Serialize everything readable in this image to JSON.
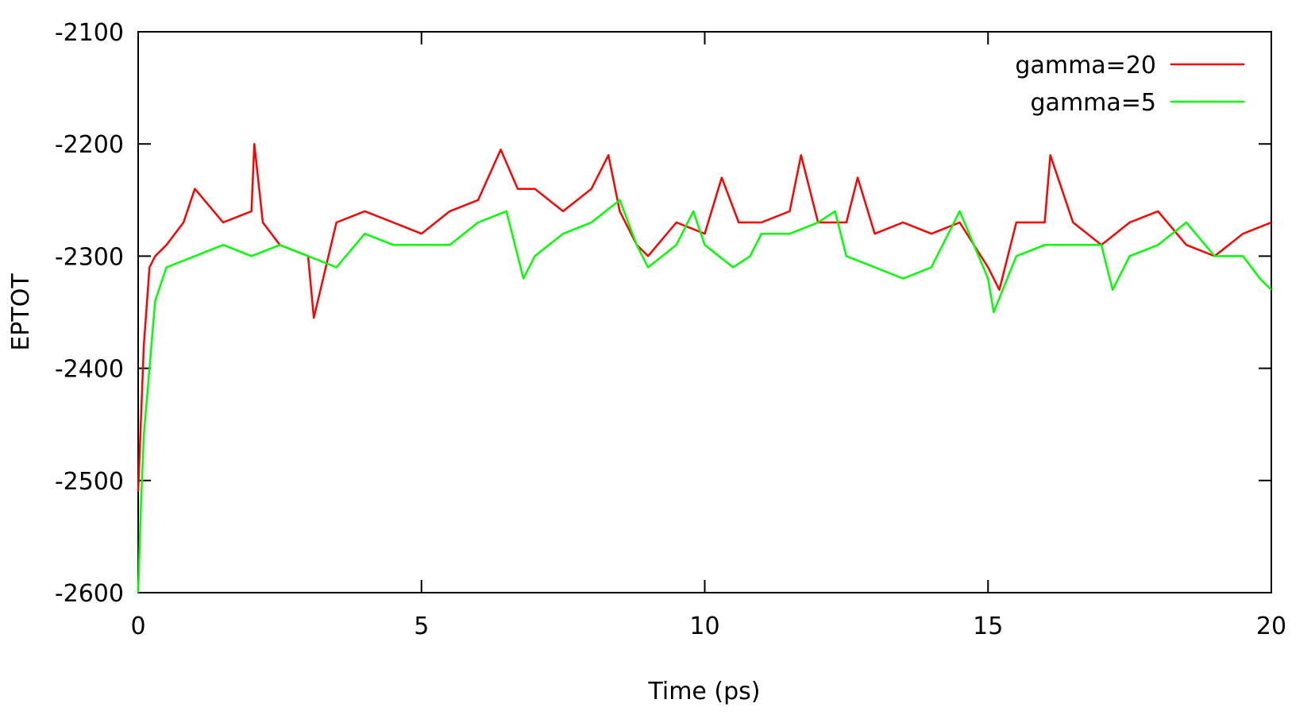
{
  "chart_data": {
    "type": "line",
    "xlabel": "Time (ps)",
    "ylabel": "EPTOT",
    "xlim": [
      0,
      20
    ],
    "ylim": [
      -2600,
      -2100
    ],
    "xticks": [
      0,
      5,
      10,
      15,
      20
    ],
    "yticks": [
      -2100,
      -2200,
      -2300,
      -2400,
      -2500,
      -2600
    ],
    "grid": false,
    "legend_position": "top-right",
    "series": [
      {
        "name": "gamma=20",
        "color": "#ff0000",
        "x": [
          0,
          0.1,
          0.2,
          0.3,
          0.5,
          0.8,
          1.0,
          1.5,
          2.0,
          2.05,
          2.2,
          2.5,
          3.0,
          3.1,
          3.5,
          4.0,
          4.5,
          5.0,
          5.5,
          6.0,
          6.4,
          6.7,
          7.0,
          7.5,
          8.0,
          8.3,
          8.5,
          8.8,
          9.0,
          9.5,
          10.0,
          10.3,
          10.6,
          11.0,
          11.5,
          11.7,
          12.0,
          12.5,
          12.7,
          13.0,
          13.5,
          14.0,
          14.5,
          15.0,
          15.2,
          15.5,
          16.0,
          16.1,
          16.5,
          17.0,
          17.5,
          18.0,
          18.5,
          19.0,
          19.5,
          20.0
        ],
        "y": [
          -2510,
          -2380,
          -2310,
          -2300,
          -2290,
          -2270,
          -2240,
          -2270,
          -2260,
          -2200,
          -2270,
          -2290,
          -2300,
          -2355,
          -2270,
          -2260,
          -2270,
          -2280,
          -2260,
          -2250,
          -2205,
          -2240,
          -2240,
          -2260,
          -2240,
          -2210,
          -2260,
          -2290,
          -2300,
          -2270,
          -2280,
          -2230,
          -2270,
          -2270,
          -2260,
          -2210,
          -2270,
          -2270,
          -2230,
          -2280,
          -2270,
          -2280,
          -2270,
          -2310,
          -2330,
          -2270,
          -2270,
          -2210,
          -2270,
          -2290,
          -2270,
          -2260,
          -2290,
          -2300,
          -2280,
          -2270
        ]
      },
      {
        "name": "gamma=5",
        "color": "#00ff00",
        "x": [
          0,
          0.05,
          0.1,
          0.2,
          0.3,
          0.5,
          1.0,
          1.5,
          2.0,
          2.5,
          3.0,
          3.5,
          4.0,
          4.5,
          5.0,
          5.5,
          6.0,
          6.5,
          6.8,
          7.0,
          7.5,
          8.0,
          8.5,
          8.8,
          9.0,
          9.5,
          9.8,
          10.0,
          10.5,
          10.8,
          11.0,
          11.5,
          12.0,
          12.3,
          12.5,
          13.0,
          13.5,
          14.0,
          14.3,
          14.5,
          15.0,
          15.1,
          15.5,
          16.0,
          16.5,
          17.0,
          17.2,
          17.5,
          18.0,
          18.5,
          19.0,
          19.5,
          19.8,
          20.0
        ],
        "y": [
          -2600,
          -2520,
          -2460,
          -2400,
          -2340,
          -2310,
          -2300,
          -2290,
          -2300,
          -2290,
          -2300,
          -2310,
          -2280,
          -2290,
          -2290,
          -2290,
          -2270,
          -2260,
          -2320,
          -2300,
          -2280,
          -2270,
          -2250,
          -2290,
          -2310,
          -2290,
          -2260,
          -2290,
          -2310,
          -2300,
          -2280,
          -2280,
          -2270,
          -2260,
          -2300,
          -2310,
          -2320,
          -2310,
          -2280,
          -2260,
          -2320,
          -2350,
          -2300,
          -2290,
          -2290,
          -2290,
          -2330,
          -2300,
          -2290,
          -2270,
          -2300,
          -2300,
          -2320,
          -2330
        ]
      }
    ]
  }
}
